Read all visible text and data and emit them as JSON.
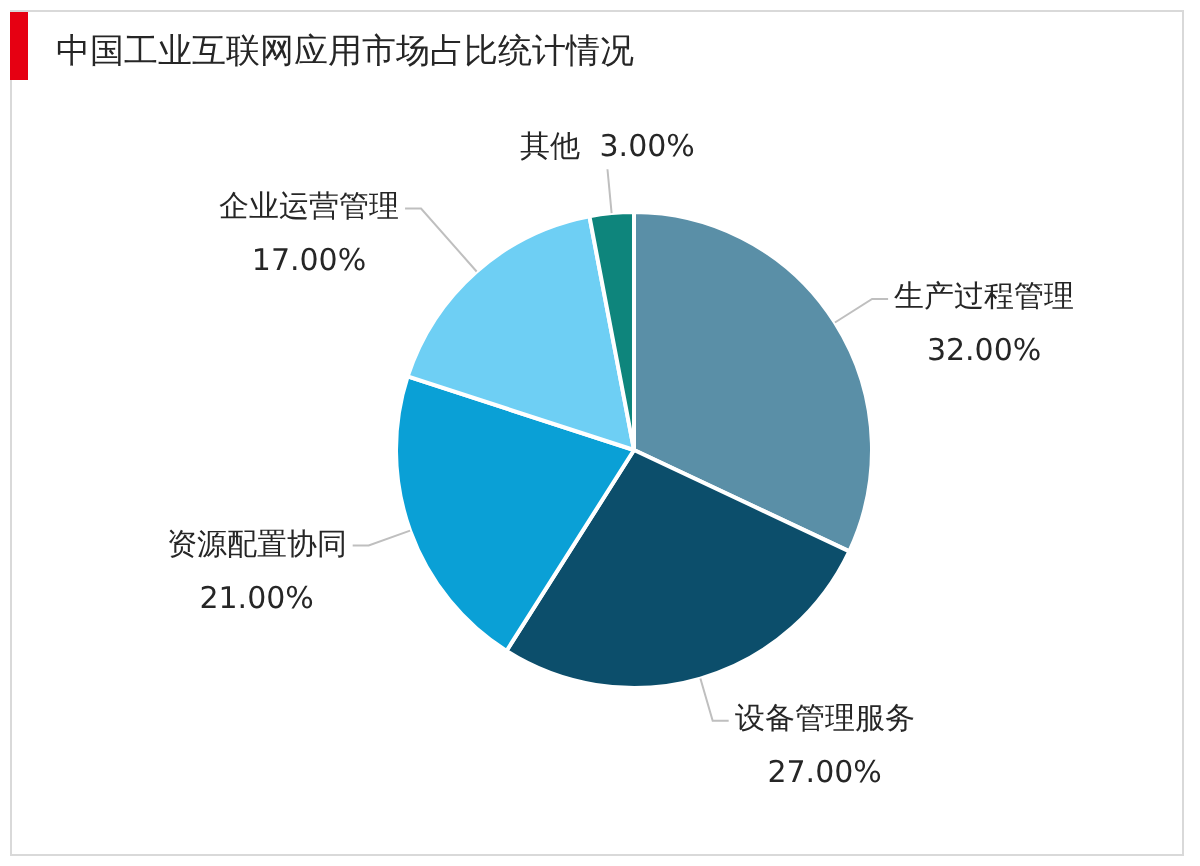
{
  "chart_data": {
    "type": "pie",
    "title": "中国工业互联网应用市场占比统计情况",
    "categories": [
      "生产过程管理",
      "设备管理服务",
      "资源配置协同",
      "企业运营管理",
      "其他"
    ],
    "values": [
      32,
      27,
      21,
      17,
      3
    ],
    "colors": [
      "#5a8fa7",
      "#0c4e6b",
      "#0aa0d6",
      "#6ecff4",
      "#0e857c"
    ],
    "value_labels": [
      "32.00%",
      "27.00%",
      "21.00%",
      "17.00%",
      "3.00%"
    ]
  }
}
